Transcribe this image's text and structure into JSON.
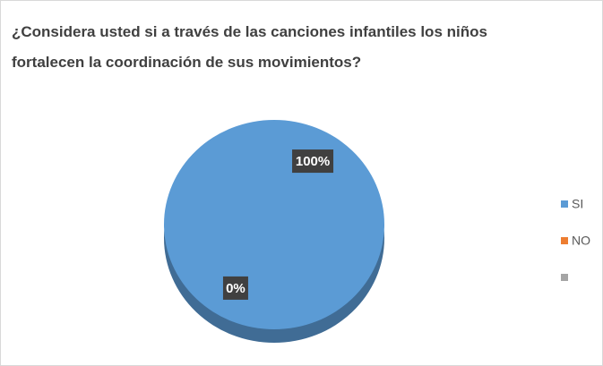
{
  "chart_data": {
    "type": "pie",
    "title": "¿Considera usted si a través de las canciones infantiles los niños fortalecen la coordinación de sus movimientos?",
    "categories": [
      "SI",
      "NO",
      null
    ],
    "values": [
      100,
      0,
      0
    ],
    "value_labels": [
      "100%",
      "0%",
      null
    ],
    "colors": [
      "#5b9bd5",
      "#ed7d31",
      "#a5a5a5"
    ],
    "legend": "right"
  }
}
